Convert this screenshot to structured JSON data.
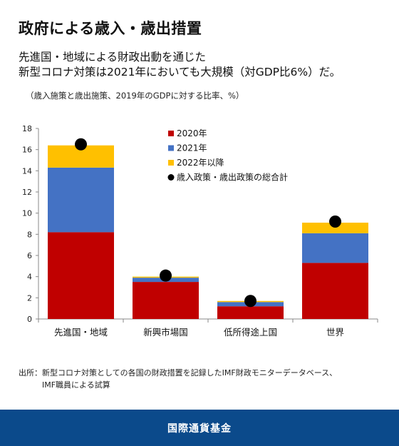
{
  "header": {
    "title": "政府による歳入・歳出措置",
    "subtitle_line1": "先進国・地域による財政出動を通じた",
    "subtitle_line2": "新型コロナ対策は2021年においても大規模（対GDP比6%）だ。",
    "note": "（歳入施策と歳出施策、2019年のGDPに対する比率、%）"
  },
  "chart_data": {
    "type": "bar",
    "stacked": true,
    "categories": [
      "先進国・地域",
      "新興市場国",
      "低所得途上国",
      "世界"
    ],
    "series": [
      {
        "name": "2020年",
        "color": "#c00000",
        "values": [
          8.2,
          3.5,
          1.2,
          5.3
        ]
      },
      {
        "name": "2021年",
        "color": "#4472c4",
        "values": [
          6.1,
          0.4,
          0.4,
          2.8
        ]
      },
      {
        "name": "2022年以降",
        "color": "#ffc000",
        "values": [
          2.1,
          0.1,
          0.1,
          1.0
        ]
      }
    ],
    "total_marker": {
      "name": "歳入政策・歳出政策の総合計",
      "color": "#000000",
      "values": [
        16.5,
        4.1,
        1.7,
        9.2
      ]
    },
    "yticks": [
      0,
      2,
      4,
      6,
      8,
      10,
      12,
      14,
      16,
      18
    ],
    "ylim": [
      0,
      18
    ],
    "grid": false,
    "legend_position": "top-center"
  },
  "source": {
    "line1": "出所：新型コロナ対策としての各国の財政措置を記録したIMF財政モニターデータベース、",
    "line2": "IMF職員による試算"
  },
  "footer": {
    "label": "国際通貨基金"
  }
}
